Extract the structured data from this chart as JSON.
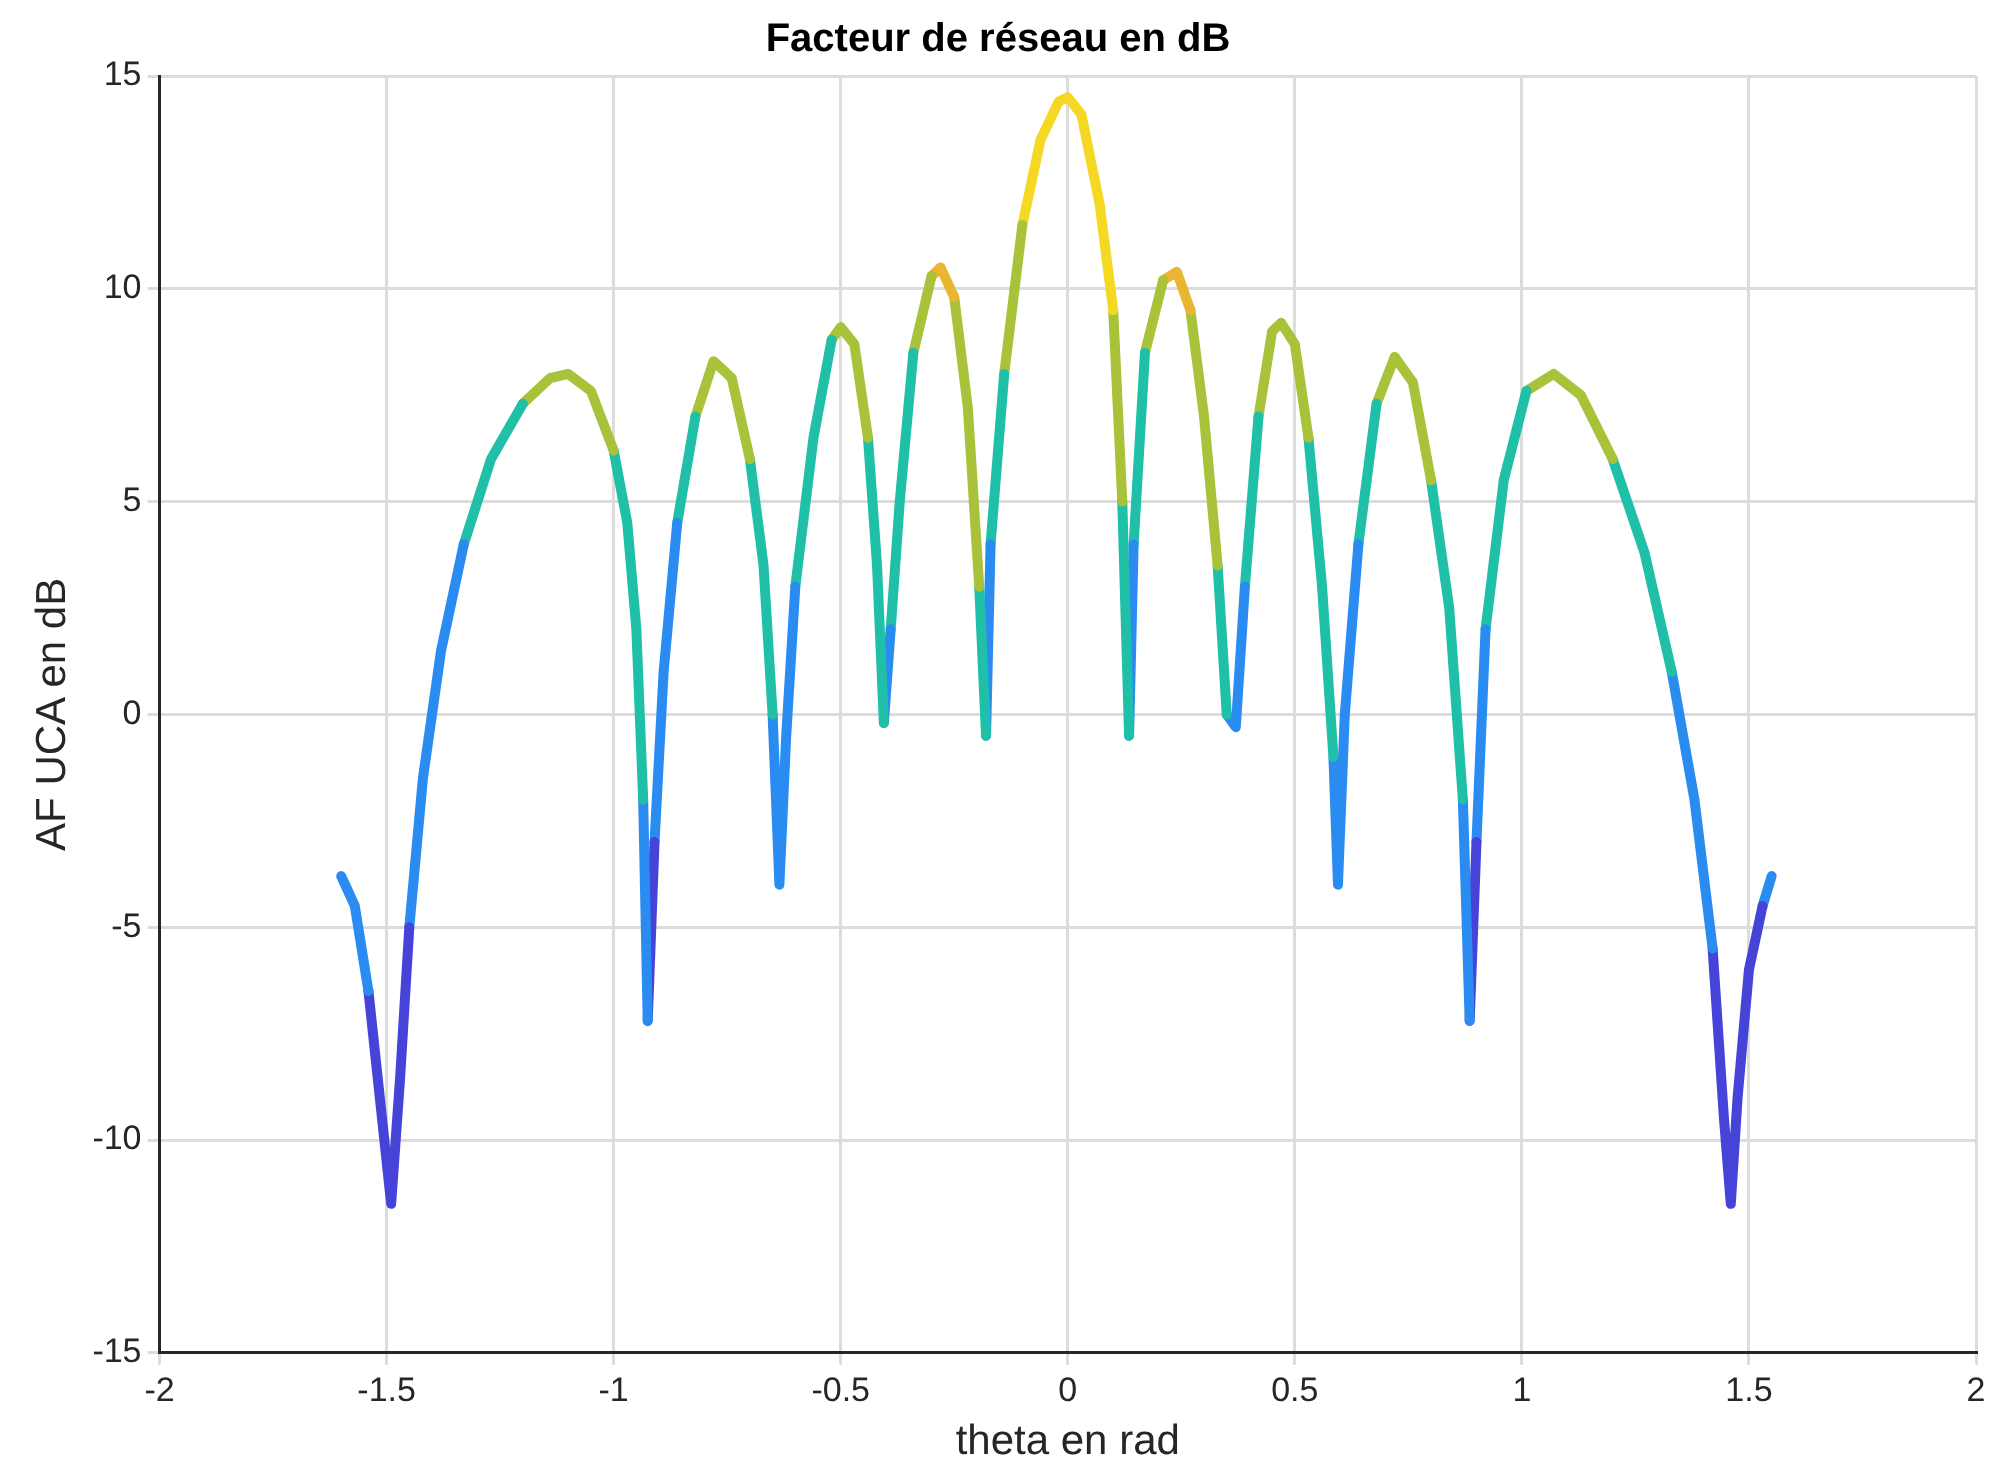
{
  "chart_data": {
    "type": "line",
    "title": "Facteur de réseau en dB",
    "xlabel": "theta en rad",
    "ylabel": "AF UCA en dB",
    "series": [
      {
        "color": "#2a8cf0",
        "x": [
          -1.6,
          -1.57,
          -1.54
        ],
        "values": [
          -3.8,
          -4.5,
          -6.5
        ]
      },
      {
        "color": "#4543d8",
        "x": [
          -1.54,
          -1.51,
          -1.49,
          -1.47,
          -1.45
        ],
        "values": [
          -6.5,
          -9.5,
          -11.5,
          -8.5,
          -5
        ]
      },
      {
        "color": "#2a8cf0",
        "x": [
          -1.45,
          -1.42,
          -1.38,
          -1.33
        ],
        "values": [
          -5,
          -1.5,
          1.5,
          4
        ]
      },
      {
        "color": "#20bfa8",
        "x": [
          -1.33,
          -1.27,
          -1.2
        ],
        "values": [
          4,
          6,
          7.3
        ]
      },
      {
        "color": "#a8c23a",
        "x": [
          -1.2,
          -1.14,
          -1.1,
          -1.05,
          -1.0
        ],
        "values": [
          7.3,
          7.9,
          8,
          7.6,
          6.2
        ]
      },
      {
        "color": "#20bfa8",
        "x": [
          -1.0,
          -0.97,
          -0.95,
          -0.935
        ],
        "values": [
          6.2,
          4.5,
          2,
          -2
        ]
      },
      {
        "color": "#2a8cf0",
        "x": [
          -0.935,
          -0.925
        ],
        "values": [
          -2,
          -7.2
        ]
      },
      {
        "color": "#4543d8",
        "x": [
          -0.925,
          -0.91
        ],
        "values": [
          -7.2,
          -3
        ]
      },
      {
        "color": "#2a8cf0",
        "x": [
          -0.91,
          -0.89,
          -0.86
        ],
        "values": [
          -3,
          1,
          4.5
        ]
      },
      {
        "color": "#20bfa8",
        "x": [
          -0.86,
          -0.82
        ],
        "values": [
          4.5,
          7
        ]
      },
      {
        "color": "#a8c23a",
        "x": [
          -0.82,
          -0.78,
          -0.74,
          -0.7
        ],
        "values": [
          7,
          8.3,
          7.9,
          6
        ]
      },
      {
        "color": "#20bfa8",
        "x": [
          -0.7,
          -0.67,
          -0.65
        ],
        "values": [
          6,
          3.5,
          0
        ]
      },
      {
        "color": "#2a8cf0",
        "x": [
          -0.65,
          -0.635,
          -0.62,
          -0.6
        ],
        "values": [
          0,
          -4,
          -0.5,
          3
        ]
      },
      {
        "color": "#20bfa8",
        "x": [
          -0.6,
          -0.56,
          -0.52
        ],
        "values": [
          3,
          6.5,
          8.8
        ]
      },
      {
        "color": "#a8c23a",
        "x": [
          -0.52,
          -0.5,
          -0.47,
          -0.44
        ],
        "values": [
          8.8,
          9.1,
          8.7,
          6.5
        ]
      },
      {
        "color": "#20bfa8",
        "x": [
          -0.44,
          -0.42,
          -0.405
        ],
        "values": [
          6.5,
          3.5,
          -0.2
        ]
      },
      {
        "color": "#2a8cf0",
        "x": [
          -0.405,
          -0.39
        ],
        "values": [
          -0.2,
          2
        ]
      },
      {
        "color": "#20bfa8",
        "x": [
          -0.39,
          -0.37,
          -0.34
        ],
        "values": [
          2,
          5,
          8.5
        ]
      },
      {
        "color": "#a8c23a",
        "x": [
          -0.34,
          -0.3
        ],
        "values": [
          8.5,
          10.3
        ]
      },
      {
        "color": "#eab530",
        "x": [
          -0.3,
          -0.28,
          -0.25
        ],
        "values": [
          10.3,
          10.5,
          9.8
        ]
      },
      {
        "color": "#a8c23a",
        "x": [
          -0.25,
          -0.22,
          -0.195
        ],
        "values": [
          9.8,
          7.2,
          3
        ]
      },
      {
        "color": "#20bfa8",
        "x": [
          -0.195,
          -0.18
        ],
        "values": [
          3,
          -0.5
        ]
      },
      {
        "color": "#2a8cf0",
        "x": [
          -0.18,
          -0.17
        ],
        "values": [
          -0.5,
          4
        ]
      },
      {
        "color": "#20bfa8",
        "x": [
          -0.17,
          -0.14
        ],
        "values": [
          4,
          8
        ]
      },
      {
        "color": "#a8c23a",
        "x": [
          -0.14,
          -0.1
        ],
        "values": [
          8,
          11.5
        ]
      },
      {
        "color": "#f5d824",
        "x": [
          -0.1,
          -0.06,
          -0.02,
          0,
          0.03,
          0.07,
          0.1
        ],
        "values": [
          11.5,
          13.5,
          14.4,
          14.5,
          14.1,
          12,
          9.5
        ]
      },
      {
        "color": "#a8c23a",
        "x": [
          0.1,
          0.12
        ],
        "values": [
          9.5,
          5
        ]
      },
      {
        "color": "#20bfa8",
        "x": [
          0.12,
          0.135
        ],
        "values": [
          5,
          -0.5
        ]
      },
      {
        "color": "#2a8cf0",
        "x": [
          0.135,
          0.145
        ],
        "values": [
          -0.5,
          4
        ]
      },
      {
        "color": "#20bfa8",
        "x": [
          0.145,
          0.17
        ],
        "values": [
          4,
          8.5
        ]
      },
      {
        "color": "#a8c23a",
        "x": [
          0.17,
          0.21
        ],
        "values": [
          8.5,
          10.2
        ]
      },
      {
        "color": "#eab530",
        "x": [
          0.21,
          0.24,
          0.27
        ],
        "values": [
          10.2,
          10.4,
          9.5
        ]
      },
      {
        "color": "#a8c23a",
        "x": [
          0.27,
          0.3,
          0.33
        ],
        "values": [
          9.5,
          7,
          3.5
        ]
      },
      {
        "color": "#20bfa8",
        "x": [
          0.33,
          0.35
        ],
        "values": [
          3.5,
          0
        ]
      },
      {
        "color": "#2a8cf0",
        "x": [
          0.35,
          0.37,
          0.39
        ],
        "values": [
          0,
          -0.3,
          3
        ]
      },
      {
        "color": "#20bfa8",
        "x": [
          0.39,
          0.42
        ],
        "values": [
          3,
          7
        ]
      },
      {
        "color": "#a8c23a",
        "x": [
          0.42,
          0.45,
          0.47,
          0.5,
          0.53
        ],
        "values": [
          7,
          9,
          9.2,
          8.7,
          6.5
        ]
      },
      {
        "color": "#20bfa8",
        "x": [
          0.53,
          0.56,
          0.585
        ],
        "values": [
          6.5,
          3,
          -1
        ]
      },
      {
        "color": "#2a8cf0",
        "x": [
          0.585,
          0.595,
          0.61,
          0.64
        ],
        "values": [
          -1,
          -4,
          0,
          4
        ]
      },
      {
        "color": "#20bfa8",
        "x": [
          0.64,
          0.68
        ],
        "values": [
          4,
          7.3
        ]
      },
      {
        "color": "#a8c23a",
        "x": [
          0.68,
          0.72,
          0.76,
          0.8
        ],
        "values": [
          7.3,
          8.4,
          7.8,
          5.5
        ]
      },
      {
        "color": "#20bfa8",
        "x": [
          0.8,
          0.84,
          0.87
        ],
        "values": [
          5.5,
          2.5,
          -2
        ]
      },
      {
        "color": "#2a8cf0",
        "x": [
          0.87,
          0.885
        ],
        "values": [
          -2,
          -7.2
        ]
      },
      {
        "color": "#4543d8",
        "x": [
          0.885,
          0.9
        ],
        "values": [
          -7.2,
          -3
        ]
      },
      {
        "color": "#2a8cf0",
        "x": [
          0.9,
          0.92
        ],
        "values": [
          -3,
          2
        ]
      },
      {
        "color": "#20bfa8",
        "x": [
          0.92,
          0.96,
          1.01
        ],
        "values": [
          2,
          5.5,
          7.6
        ]
      },
      {
        "color": "#a8c23a",
        "x": [
          1.01,
          1.07,
          1.13,
          1.2
        ],
        "values": [
          7.6,
          8,
          7.5,
          6
        ]
      },
      {
        "color": "#20bfa8",
        "x": [
          1.2,
          1.27,
          1.33
        ],
        "values": [
          6,
          3.8,
          1
        ]
      },
      {
        "color": "#2a8cf0",
        "x": [
          1.33,
          1.38,
          1.42
        ],
        "values": [
          1,
          -2,
          -5.5
        ]
      },
      {
        "color": "#4543d8",
        "x": [
          1.42,
          1.445,
          1.46,
          1.475,
          1.5,
          1.53
        ],
        "values": [
          -5.5,
          -9.5,
          -11.5,
          -9,
          -6,
          -4.5
        ]
      },
      {
        "color": "#2a8cf0",
        "x": [
          1.53,
          1.55
        ],
        "values": [
          -4.5,
          -3.8
        ]
      }
    ],
    "xlim": [
      -2,
      2
    ],
    "xticks": [
      -2,
      -1.5,
      -1,
      -0.5,
      0,
      0.5,
      1,
      1.5,
      2
    ],
    "ylim": [
      -15,
      15
    ],
    "yticks": [
      -15,
      -10,
      -5,
      0,
      5,
      10,
      15
    ],
    "grid": true,
    "legend": false,
    "marker": "none",
    "line_style": "solid"
  }
}
